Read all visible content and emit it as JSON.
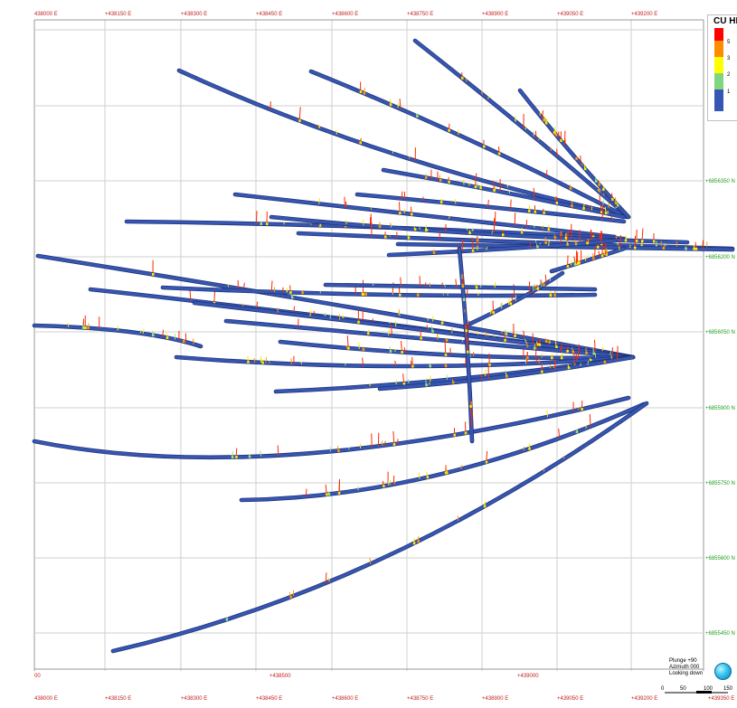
{
  "grid": {
    "easting_top": [
      "438000 E",
      "+438150 E",
      "+438300 E",
      "+438450 E",
      "+438600 E",
      "+438750 E",
      "+438900 E",
      "+439050 E",
      "+439200 E"
    ],
    "easting_bottom": [
      "438000 E",
      "+438150 E",
      "+438300 E",
      "+438450 E",
      "+438600 E",
      "+438750 E",
      "+438900 E",
      "+439050 E",
      "+439200 E",
      "+439350 E"
    ],
    "northing": [
      "+6856350 N",
      "+6856200 N",
      "+6856050 N",
      "+6855900 N",
      "+6855750 N",
      "+6855600 N",
      "+6855450 N"
    ],
    "lower_scale": [
      "00",
      "+438500",
      "+439000"
    ],
    "easting_color": "#c02020",
    "northing_color": "#1e9e1e"
  },
  "legend": {
    "title": "CU HI",
    "labels": [
      "5",
      "3",
      "2",
      "1"
    ],
    "colors": [
      "#ff0000",
      "#ff8c00",
      "#ffff00",
      "#7fd67f",
      "#3656b3"
    ]
  },
  "orientation": {
    "plunge": "Plunge +90",
    "azimuth": "Azimuth 000",
    "view": "Looking down"
  },
  "scale_bar": {
    "ticks": [
      "0",
      "50",
      "100",
      "150"
    ]
  },
  "drillhole_color": "#3656b3"
}
